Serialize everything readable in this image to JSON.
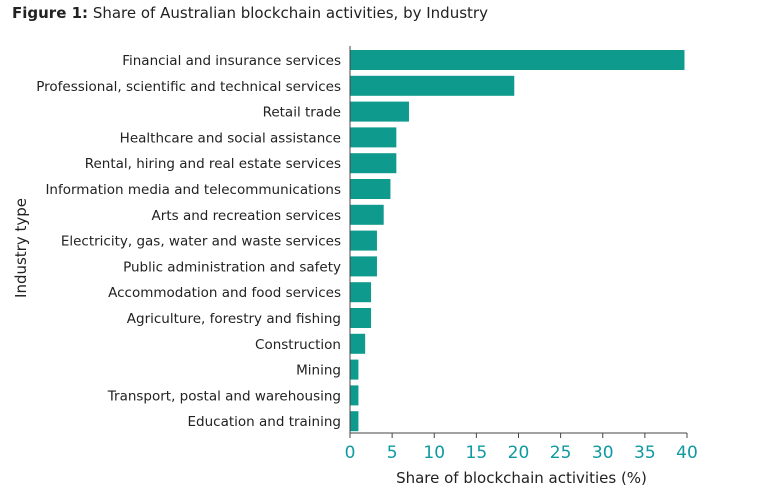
{
  "title": {
    "prefix": "Figure 1:",
    "text": "Share of Australian blockchain activities, by Industry"
  },
  "chart_data": {
    "type": "bar",
    "orientation": "horizontal",
    "title": "Figure 1: Share of Australian blockchain activities, by Industry",
    "categories": [
      "Financial and insurance services",
      "Professional, scientific and technical services",
      "Retail trade",
      "Healthcare and social assistance",
      "Rental, hiring and real estate services",
      "Information media and telecommunications",
      "Arts and recreation services",
      "Electricity, gas, water and waste services",
      "Public administration and safety",
      "Accommodation and food services",
      "Agriculture, forestry and fishing",
      "Construction",
      "Mining",
      "Transport, postal and warehousing",
      "Education and training"
    ],
    "values": [
      39.7,
      19.5,
      7,
      5.5,
      5.5,
      4.8,
      4,
      3.2,
      3.2,
      2.5,
      2.5,
      1.8,
      1,
      1,
      1
    ],
    "xlabel": "Share of blockchain activities (%)",
    "ylabel": "Industry type",
    "xlim": [
      0,
      40
    ],
    "xticks": [
      0,
      5,
      10,
      15,
      20,
      25,
      30,
      35,
      40
    ],
    "grid": false,
    "legend": "none",
    "colors": {
      "bar": "#0e9a8c",
      "tick": "#0e9aa0",
      "axis": "#444444"
    }
  }
}
